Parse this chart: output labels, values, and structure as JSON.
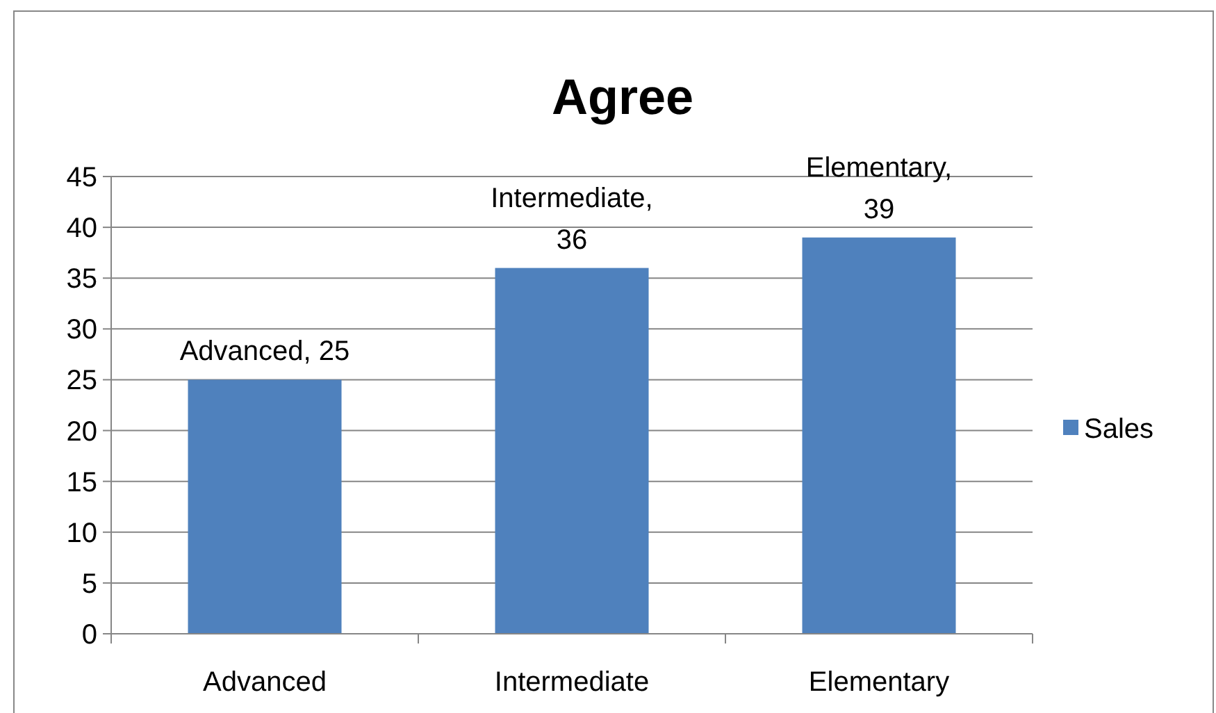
{
  "chart_data": {
    "type": "bar",
    "title": "Agree",
    "categories": [
      "Advanced",
      "Intermediate",
      "Elementary"
    ],
    "series": [
      {
        "name": "Sales",
        "color": "#4f81bd",
        "values": [
          25,
          36,
          39
        ]
      }
    ],
    "value_labels": [
      "Advanced, 25",
      "Intermediate, 36",
      "Elementary, 39"
    ],
    "ylim": [
      0,
      45
    ],
    "yticks": [
      0,
      5,
      10,
      15,
      20,
      25,
      30,
      35,
      40,
      45
    ],
    "grid": "y",
    "legend": "right"
  }
}
